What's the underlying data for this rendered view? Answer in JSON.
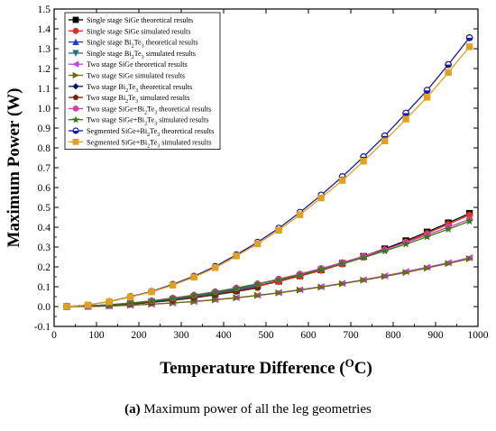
{
  "chart_data": {
    "type": "line",
    "xlabel": "Temperature Difference (",
    "xlabel_sup": "O",
    "xlabel_end": "C)",
    "ylabel": "Maximum Power (W)",
    "xlim": [
      0,
      1000
    ],
    "ylim": [
      -0.1,
      1.5
    ],
    "xticks": [
      0,
      100,
      200,
      300,
      400,
      500,
      600,
      700,
      800,
      900,
      1000
    ],
    "yticks": [
      -0.1,
      0.0,
      0.1,
      0.2,
      0.3,
      0.4,
      0.5,
      0.6,
      0.7,
      0.8,
      0.9,
      1.0,
      1.1,
      1.2,
      1.3,
      1.4,
      1.5
    ],
    "grid": false,
    "legend_position": "top-left",
    "series": [
      {
        "name_parts": [
          "Single stage SiGe theoretical results"
        ],
        "color": "#000000",
        "marker": "square",
        "x": [
          30,
          80,
          130,
          180,
          230,
          280,
          330,
          380,
          430,
          480,
          530,
          580,
          630,
          680,
          730,
          780,
          830,
          880,
          930,
          980
        ],
        "y": [
          0.0,
          0.002,
          0.006,
          0.012,
          0.021,
          0.033,
          0.047,
          0.063,
          0.082,
          0.104,
          0.128,
          0.155,
          0.185,
          0.218,
          0.253,
          0.291,
          0.332,
          0.376,
          0.422,
          0.47
        ]
      },
      {
        "name_parts": [
          "Single stage SiGe simulated results"
        ],
        "color": "#e0301e",
        "marker": "circle",
        "x": [
          30,
          80,
          130,
          180,
          230,
          280,
          330,
          380,
          430,
          480,
          530,
          580,
          630,
          680,
          730,
          780,
          830,
          880,
          930,
          980
        ],
        "y": [
          0.0,
          0.002,
          0.006,
          0.012,
          0.021,
          0.032,
          0.046,
          0.062,
          0.081,
          0.102,
          0.126,
          0.153,
          0.182,
          0.214,
          0.249,
          0.286,
          0.326,
          0.369,
          0.415,
          0.462
        ]
      },
      {
        "name_parts": [
          "Single stage Bi",
          "2",
          "Te",
          "3",
          " theoretical results"
        ],
        "color": "#1f3bd6",
        "marker": "triangle-up",
        "x": [
          30,
          80,
          130,
          180,
          230,
          280,
          330,
          380,
          430,
          480
        ],
        "y": [
          0.0,
          0.003,
          0.008,
          0.016,
          0.026,
          0.038,
          0.052,
          0.068,
          0.087,
          0.107
        ]
      },
      {
        "name_parts": [
          "Single stage Bi",
          "2",
          "Te",
          "3",
          " simulated results"
        ],
        "color": "#1f6f7f",
        "marker": "triangle-down",
        "x": [
          30,
          80,
          130,
          180,
          230,
          280,
          330,
          380,
          430,
          480
        ],
        "y": [
          0.0,
          0.003,
          0.008,
          0.015,
          0.025,
          0.037,
          0.051,
          0.067,
          0.085,
          0.105
        ]
      },
      {
        "name_parts": [
          "Two stage SiGe theoretical results"
        ],
        "color": "#c045d8",
        "marker": "triangle-left",
        "x": [
          30,
          80,
          130,
          180,
          230,
          280,
          330,
          380,
          430,
          480,
          530,
          580,
          630,
          680,
          730,
          780,
          830,
          880,
          930,
          980
        ],
        "y": [
          0.0,
          0.001,
          0.003,
          0.007,
          0.012,
          0.018,
          0.026,
          0.035,
          0.045,
          0.057,
          0.07,
          0.085,
          0.1,
          0.117,
          0.135,
          0.155,
          0.176,
          0.198,
          0.221,
          0.246
        ]
      },
      {
        "name_parts": [
          "Two stage SiGe simulated results"
        ],
        "color": "#6b6b1a",
        "marker": "triangle-right",
        "x": [
          30,
          80,
          130,
          180,
          230,
          280,
          330,
          380,
          430,
          480,
          530,
          580,
          630,
          680,
          730,
          780,
          830,
          880,
          930,
          980
        ],
        "y": [
          0.0,
          0.001,
          0.003,
          0.007,
          0.012,
          0.018,
          0.025,
          0.034,
          0.044,
          0.056,
          0.069,
          0.083,
          0.098,
          0.115,
          0.133,
          0.152,
          0.172,
          0.194,
          0.217,
          0.241
        ]
      },
      {
        "name_parts": [
          "Two stage Bi",
          "2",
          "Te",
          "3",
          " theoretical results"
        ],
        "color": "#0c1473",
        "marker": "diamond",
        "x": [
          30,
          80,
          130,
          180,
          230,
          280,
          330,
          380,
          430,
          480
        ],
        "y": [
          0.0,
          0.002,
          0.007,
          0.013,
          0.022,
          0.032,
          0.045,
          0.06,
          0.077,
          0.096
        ]
      },
      {
        "name_parts": [
          "Two stage Bi",
          "2",
          "Te",
          "3",
          " simulated results"
        ],
        "color": "#6b2a0e",
        "marker": "pentagon",
        "x": [
          30,
          80,
          130,
          180,
          230,
          280,
          330,
          380,
          430,
          480
        ],
        "y": [
          0.0,
          0.002,
          0.007,
          0.013,
          0.021,
          0.031,
          0.044,
          0.059,
          0.075,
          0.094
        ]
      },
      {
        "name_parts": [
          "Two stage SiGe+Bi",
          "2",
          "Te",
          "3",
          " theoretical results"
        ],
        "color": "#d43fa8",
        "marker": "circle",
        "x": [
          30,
          80,
          130,
          180,
          230,
          280,
          330,
          380,
          430,
          480,
          530,
          580,
          630,
          680,
          730,
          780,
          830,
          880,
          930,
          980
        ],
        "y": [
          0.0,
          0.003,
          0.009,
          0.018,
          0.029,
          0.043,
          0.058,
          0.075,
          0.094,
          0.115,
          0.139,
          0.164,
          0.192,
          0.222,
          0.253,
          0.287,
          0.323,
          0.361,
          0.4,
          0.44
        ]
      },
      {
        "name_parts": [
          "Two stage SiGe+Bi",
          "2",
          "Te",
          "3",
          " simulated results"
        ],
        "color": "#3a7a1a",
        "marker": "star",
        "x": [
          30,
          80,
          130,
          180,
          230,
          280,
          330,
          380,
          430,
          480,
          530,
          580,
          630,
          680,
          730,
          780,
          830,
          880,
          930,
          980
        ],
        "y": [
          0.0,
          0.003,
          0.009,
          0.017,
          0.028,
          0.041,
          0.056,
          0.073,
          0.092,
          0.113,
          0.135,
          0.16,
          0.187,
          0.216,
          0.247,
          0.28,
          0.315,
          0.352,
          0.39,
          0.43
        ]
      },
      {
        "name_parts": [
          "Segmented SiGe+Bi",
          "2",
          "Te",
          "3",
          " theoretical results"
        ],
        "color": "#1a1a9a",
        "marker": "circle-half",
        "x": [
          30,
          80,
          130,
          180,
          230,
          280,
          330,
          380,
          430,
          480,
          530,
          580,
          630,
          680,
          730,
          780,
          830,
          880,
          930,
          980
        ],
        "y": [
          0.0,
          0.008,
          0.025,
          0.05,
          0.076,
          0.112,
          0.153,
          0.202,
          0.261,
          0.324,
          0.395,
          0.475,
          0.562,
          0.655,
          0.755,
          0.86,
          0.975,
          1.09,
          1.22,
          1.355
        ]
      },
      {
        "name_parts": [
          "Segmented SiGe+Bi",
          "2",
          "Te",
          "3",
          " simulated results"
        ],
        "color": "#e0a020",
        "marker": "square",
        "x": [
          30,
          80,
          130,
          180,
          230,
          280,
          330,
          380,
          430,
          480,
          530,
          580,
          630,
          680,
          730,
          780,
          830,
          880,
          930,
          980
        ],
        "y": [
          0.0,
          0.008,
          0.024,
          0.048,
          0.074,
          0.108,
          0.148,
          0.196,
          0.255,
          0.316,
          0.385,
          0.463,
          0.548,
          0.636,
          0.733,
          0.835,
          0.945,
          1.055,
          1.18,
          1.31
        ]
      }
    ]
  },
  "caption": {
    "label": "(a)",
    "text": " Maximum power of all the leg geometries"
  }
}
